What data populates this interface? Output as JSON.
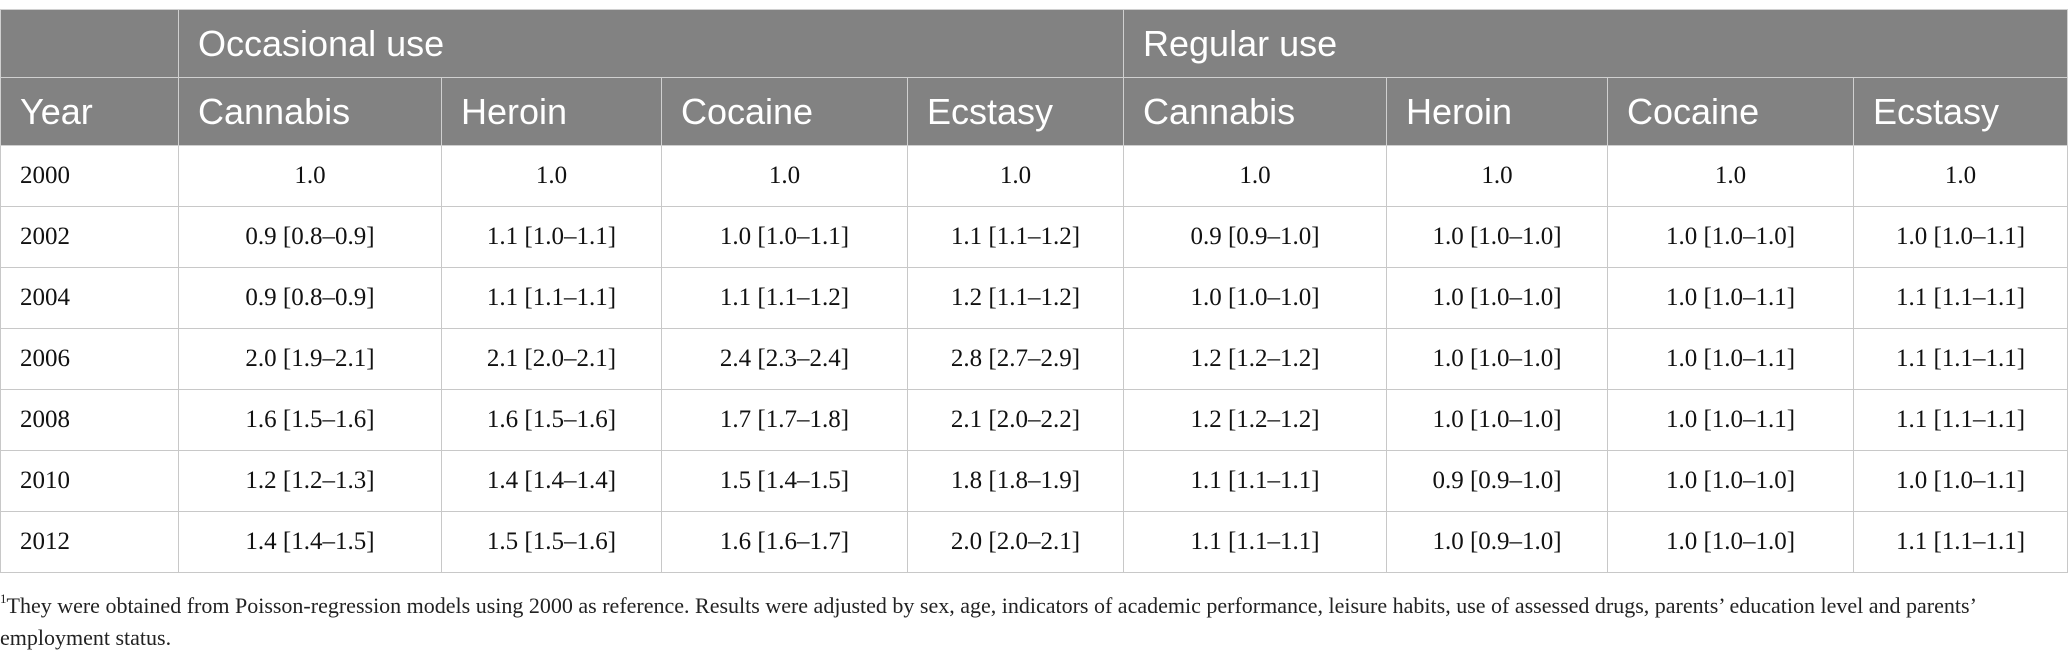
{
  "table": {
    "group_headers": {
      "blank": "",
      "occasional": "Occasional use",
      "regular": "Regular use"
    },
    "column_headers": [
      "Year",
      "Cannabis",
      "Heroin",
      "Cocaine",
      "Ecstasy",
      "Cannabis",
      "Heroin",
      "Cocaine",
      "Ecstasy"
    ],
    "rows": [
      [
        "2000",
        "1.0",
        "1.0",
        "1.0",
        "1.0",
        "1.0",
        "1.0",
        "1.0",
        "1.0"
      ],
      [
        "2002",
        "0.9 [0.8–0.9]",
        "1.1 [1.0–1.1]",
        "1.0 [1.0–1.1]",
        "1.1 [1.1–1.2]",
        "0.9 [0.9–1.0]",
        "1.0 [1.0–1.0]",
        "1.0 [1.0–1.0]",
        "1.0 [1.0–1.1]"
      ],
      [
        "2004",
        "0.9 [0.8–0.9]",
        "1.1 [1.1–1.1]",
        "1.1 [1.1–1.2]",
        "1.2 [1.1–1.2]",
        "1.0 [1.0–1.0]",
        "1.0 [1.0–1.0]",
        "1.0 [1.0–1.1]",
        "1.1 [1.1–1.1]"
      ],
      [
        "2006",
        "2.0 [1.9–2.1]",
        "2.1 [2.0–2.1]",
        "2.4 [2.3–2.4]",
        "2.8 [2.7–2.9]",
        "1.2 [1.2–1.2]",
        "1.0 [1.0–1.0]",
        "1.0 [1.0–1.1]",
        "1.1 [1.1–1.1]"
      ],
      [
        "2008",
        "1.6 [1.5–1.6]",
        "1.6 [1.5–1.6]",
        "1.7 [1.7–1.8]",
        "2.1 [2.0–2.2]",
        "1.2 [1.2–1.2]",
        "1.0 [1.0–1.0]",
        "1.0 [1.0–1.1]",
        "1.1 [1.1–1.1]"
      ],
      [
        "2010",
        "1.2 [1.2–1.3]",
        "1.4 [1.4–1.4]",
        "1.5 [1.4–1.5]",
        "1.8 [1.8–1.9]",
        "1.1 [1.1–1.1]",
        "0.9 [0.9–1.0]",
        "1.0 [1.0–1.0]",
        "1.0 [1.0–1.1]"
      ],
      [
        "2012",
        "1.4 [1.4–1.5]",
        "1.5 [1.5–1.6]",
        "1.6 [1.6–1.7]",
        "2.0 [2.0–2.1]",
        "1.1 [1.1–1.1]",
        "1.0 [0.9–1.0]",
        "1.0 [1.0–1.0]",
        "1.1 [1.1–1.1]"
      ]
    ]
  },
  "footnote": {
    "marker": "1",
    "text": "They were obtained from Poisson-regression models using 2000 as reference. Results were adjusted by sex, age, indicators of academic performance, leisure habits, use of assessed drugs, parents’ education level and parents’ employment status."
  },
  "colors": {
    "header_background": "#828282",
    "header_text": "#ffffff",
    "grid_line": "#c8c8c8"
  }
}
